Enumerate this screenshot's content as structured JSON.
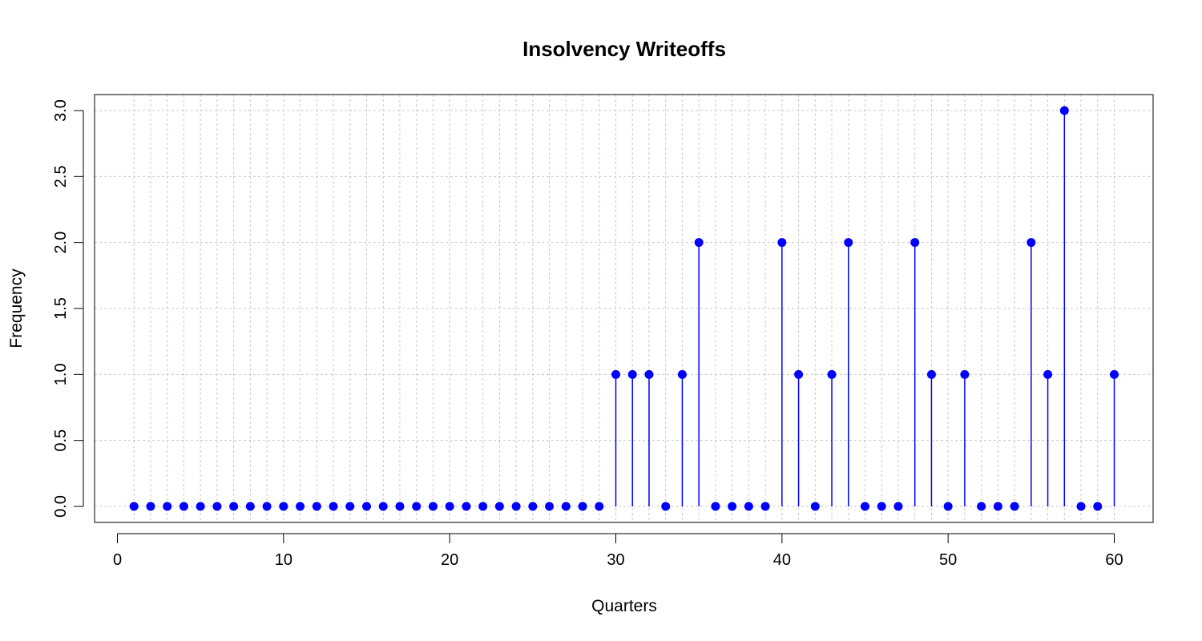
{
  "chart_data": {
    "type": "scatter",
    "style": "stem",
    "title": "Insolvency Writeoffs",
    "xlabel": "Quarters",
    "ylabel": "Frequency",
    "x": [
      1,
      2,
      3,
      4,
      5,
      6,
      7,
      8,
      9,
      10,
      11,
      12,
      13,
      14,
      15,
      16,
      17,
      18,
      19,
      20,
      21,
      22,
      23,
      24,
      25,
      26,
      27,
      28,
      29,
      30,
      31,
      32,
      33,
      34,
      35,
      36,
      37,
      38,
      39,
      40,
      41,
      42,
      43,
      44,
      45,
      46,
      47,
      48,
      49,
      50,
      51,
      52,
      53,
      54,
      55,
      56,
      57,
      58,
      59,
      60
    ],
    "y": [
      0,
      0,
      0,
      0,
      0,
      0,
      0,
      0,
      0,
      0,
      0,
      0,
      0,
      0,
      0,
      0,
      0,
      0,
      0,
      0,
      0,
      0,
      0,
      0,
      0,
      0,
      0,
      0,
      0,
      1,
      1,
      1,
      0,
      1,
      2,
      0,
      0,
      0,
      0,
      2,
      1,
      0,
      1,
      2,
      0,
      0,
      0,
      2,
      1,
      0,
      1,
      0,
      0,
      0,
      2,
      1,
      3,
      0,
      0,
      1
    ],
    "xlim": [
      0,
      62.5
    ],
    "ylim": [
      -0.12,
      3.12
    ],
    "xticks": [
      0,
      10,
      20,
      30,
      40,
      50,
      60
    ],
    "xtick_labels": [
      "0",
      "10",
      "20",
      "30",
      "40",
      "50",
      "60"
    ],
    "yticks": [
      0,
      0.5,
      1,
      1.5,
      2,
      2.5,
      3
    ],
    "ytick_labels": [
      "0.0",
      "0.5",
      "1.0",
      "1.5",
      "2.0",
      "2.5",
      "3.0"
    ],
    "grid": true,
    "grid_color": "#c8c8c8",
    "series_color": "#0000ff"
  }
}
